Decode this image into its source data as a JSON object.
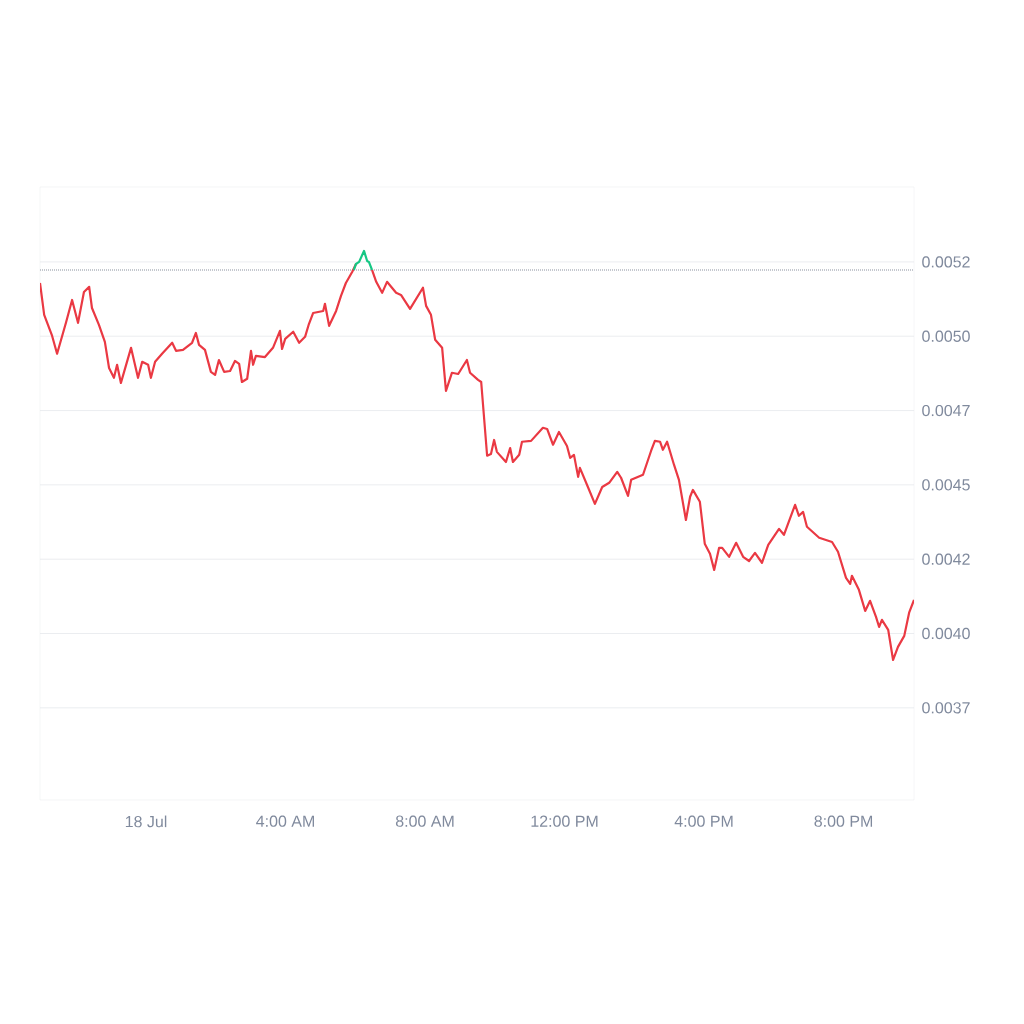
{
  "chart_data": {
    "type": "line",
    "x": [
      -3.04,
      -2.92,
      -2.7,
      -2.55,
      -2.29,
      -2.12,
      -1.95,
      -1.78,
      -1.63,
      -1.55,
      -1.35,
      -1.18,
      -1.06,
      -0.92,
      -0.83,
      -0.72,
      -0.43,
      -0.23,
      -0.11,
      0.06,
      0.14,
      0.26,
      0.46,
      0.75,
      0.86,
      1.06,
      1.32,
      1.43,
      1.52,
      1.69,
      1.86,
      1.98,
      2.09,
      2.24,
      2.41,
      2.55,
      2.67,
      2.75,
      2.9,
      3.01,
      3.07,
      3.15,
      3.41,
      3.64,
      3.84,
      3.9,
      3.99,
      4.22,
      4.39,
      4.56,
      4.67,
      4.79,
      5.08,
      5.13,
      5.25,
      5.45,
      5.59,
      5.73,
      5.91,
      6.02,
      6.11,
      6.25,
      6.34,
      6.39,
      6.48,
      6.6,
      6.77,
      6.91,
      7.17,
      7.31,
      7.57,
      7.94,
      8.03,
      8.17,
      8.29,
      8.49,
      8.6,
      8.77,
      8.95,
      9.2,
      9.29,
      9.52,
      9.61,
      9.78,
      9.89,
      9.98,
      10.06,
      10.32,
      10.44,
      10.52,
      10.7,
      10.78,
      11.04,
      11.38,
      11.5,
      11.67,
      11.84,
      12.07,
      12.16,
      12.27,
      12.39,
      12.44,
      12.67,
      12.87,
      13.08,
      13.28,
      13.51,
      13.62,
      13.82,
      13.91,
      14.25,
      14.48,
      14.59,
      14.74,
      14.82,
      14.94,
      15.14,
      15.28,
      15.48,
      15.6,
      15.68,
      15.88,
      16.02,
      16.17,
      16.29,
      16.43,
      16.52,
      16.72,
      16.92,
      17.12,
      17.29,
      17.46,
      17.66,
      17.84,
      18.15,
      18.29,
      18.61,
      18.72,
      18.84,
      18.95,
      19.3,
      19.67,
      19.84,
      20.07,
      20.19,
      20.24,
      20.44,
      20.62,
      20.76,
      20.93,
      21.02,
      21.1,
      21.28,
      21.42,
      21.56,
      21.74,
      21.88,
      22.02
    ],
    "series": [
      {
        "color": "#ea3943",
        "values": [
          0.005179,
          0.005072,
          0.005004,
          0.004941,
          0.005048,
          0.005122,
          0.005045,
          0.005149,
          0.005166,
          0.005095,
          0.005038,
          0.004981,
          0.004893,
          0.00486,
          0.004904,
          0.004843,
          0.004961,
          0.00486,
          0.004914,
          0.004904,
          0.00486,
          0.004914,
          0.004941,
          0.004978,
          0.004951,
          0.004954,
          0.004978,
          0.005011,
          0.004971,
          0.004954,
          0.00488,
          0.00487,
          0.00492,
          0.00488,
          0.004883,
          0.004917,
          0.004907,
          0.004846,
          0.004857,
          0.004951,
          0.004904,
          0.004934,
          0.00493,
          0.004961,
          0.005018,
          0.004957,
          0.004991,
          0.005015,
          0.004978,
          0.004998,
          0.005041,
          0.005078,
          0.005085,
          0.005109,
          0.005035,
          0.005085,
          0.005136,
          0.005179,
          0.005216,
          0.005243,
          null,
          null,
          null,
          null,
          0.005223,
          0.005183,
          0.005146,
          0.005183,
          0.005146,
          0.005139,
          0.005092,
          0.005163,
          0.005102,
          0.005072,
          0.004988,
          0.004961,
          0.004816,
          0.004877,
          0.004873,
          0.00492,
          0.004877,
          0.004853,
          0.004846,
          0.004598,
          0.004604,
          0.004651,
          0.004611,
          0.004577,
          0.004624,
          0.004577,
          0.004601,
          0.004645,
          0.004648,
          0.004692,
          0.004688,
          0.004635,
          0.004678,
          0.004631,
          0.004591,
          0.004601,
          0.004527,
          0.004557,
          0.004493,
          0.004436,
          0.004493,
          0.004507,
          0.004544,
          0.004524,
          0.004463,
          0.004517,
          0.004534,
          0.004614,
          0.004648,
          0.004645,
          0.004618,
          0.004645,
          0.004567,
          0.004517,
          0.004382,
          0.00446,
          0.004483,
          0.004443,
          0.004302,
          0.004268,
          0.004214,
          0.004288,
          0.004288,
          0.004258,
          0.004305,
          0.004258,
          0.004244,
          0.004271,
          0.004238,
          0.004298,
          0.004352,
          0.004332,
          0.004433,
          0.004396,
          0.004409,
          0.004359,
          0.004322,
          0.004308,
          0.004275,
          0.004187,
          0.004167,
          0.004194,
          0.004147,
          0.004076,
          0.00411,
          0.004056,
          0.004022,
          0.004046,
          0.004012,
          0.003911,
          0.003955,
          0.003992,
          0.00407,
          0.004113
        ]
      },
      {
        "color": "#16c784",
        "x": [
          5.96,
          6.02,
          6.11,
          6.25,
          6.34,
          6.39,
          6.48
        ],
        "values": [
          0.005223,
          0.005243,
          0.00525,
          0.005287,
          0.005253,
          0.00525,
          0.005223
        ]
      }
    ],
    "xlim": [
      -3.04,
      22.02
    ],
    "xticks": [
      {
        "value": 0,
        "label": "18 Jul"
      },
      {
        "value": 4,
        "label": "4:00 AM"
      },
      {
        "value": 8,
        "label": "8:00 AM"
      },
      {
        "value": 12,
        "label": "12:00 PM"
      },
      {
        "value": 16,
        "label": "4:00 PM"
      },
      {
        "value": 20,
        "label": "8:00 PM"
      }
    ],
    "ylim": [
      0.00344,
      0.005502
    ],
    "yticks": [
      {
        "value": 0.00375,
        "label": "0.0037"
      },
      {
        "value": 0.004,
        "label": "0.0040"
      },
      {
        "value": 0.00425,
        "label": "0.0042"
      },
      {
        "value": 0.0045,
        "label": "0.0045"
      },
      {
        "value": 0.00475,
        "label": "0.0047"
      },
      {
        "value": 0.005,
        "label": "0.0050"
      },
      {
        "value": 0.00525,
        "label": "0.0052"
      }
    ],
    "ref_lines": [
      {
        "axis": "y",
        "value": 0.005223,
        "color": "#8a919e",
        "line_style": "dotted"
      }
    ],
    "grid": "y",
    "marker": "none",
    "line_style": "solid"
  }
}
